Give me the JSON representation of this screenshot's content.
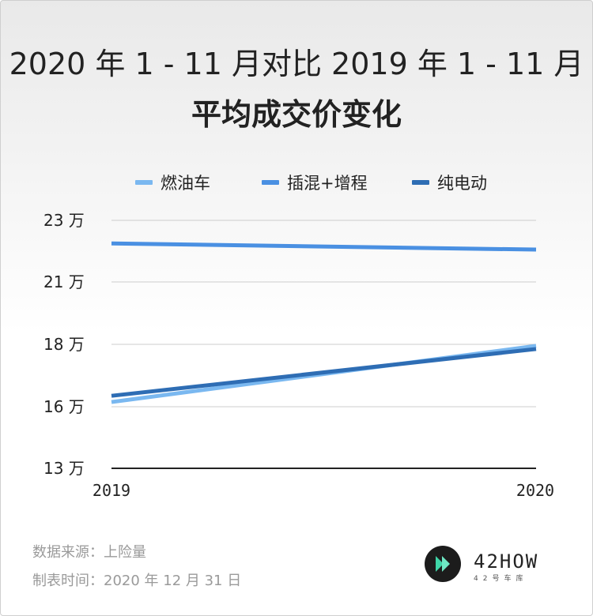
{
  "title": {
    "line1": "2020 年 1 - 11 月对比 2019 年 1 - 11 月",
    "line2": "平均成交价变化"
  },
  "chart_data": {
    "type": "line",
    "categories": [
      "2019",
      "2020"
    ],
    "series": [
      {
        "name": "燃油车",
        "values": [
          16.15,
          17.95
        ],
        "color": "#7ab8f0"
      },
      {
        "name": "插混+增程",
        "values": [
          22.25,
          22.05
        ],
        "color": "#4a90e2"
      },
      {
        "name": "纯电动",
        "values": [
          16.35,
          17.85
        ],
        "color": "#2e6db4"
      }
    ],
    "y_ticks": [
      {
        "value": 13,
        "label": "13 万"
      },
      {
        "value": 16,
        "label": "16 万"
      },
      {
        "value": 18,
        "label": "18 万"
      },
      {
        "value": 21,
        "label": "21 万"
      },
      {
        "value": 23,
        "label": "23 万"
      }
    ],
    "ylim": [
      13,
      23
    ],
    "xlabel": "",
    "ylabel": ""
  },
  "footer": {
    "source": "数据来源：上险量",
    "date": "制表时间：2020 年 12 月 31 日"
  },
  "logo": {
    "name": "42HOW",
    "subtitle": "42号车库"
  }
}
